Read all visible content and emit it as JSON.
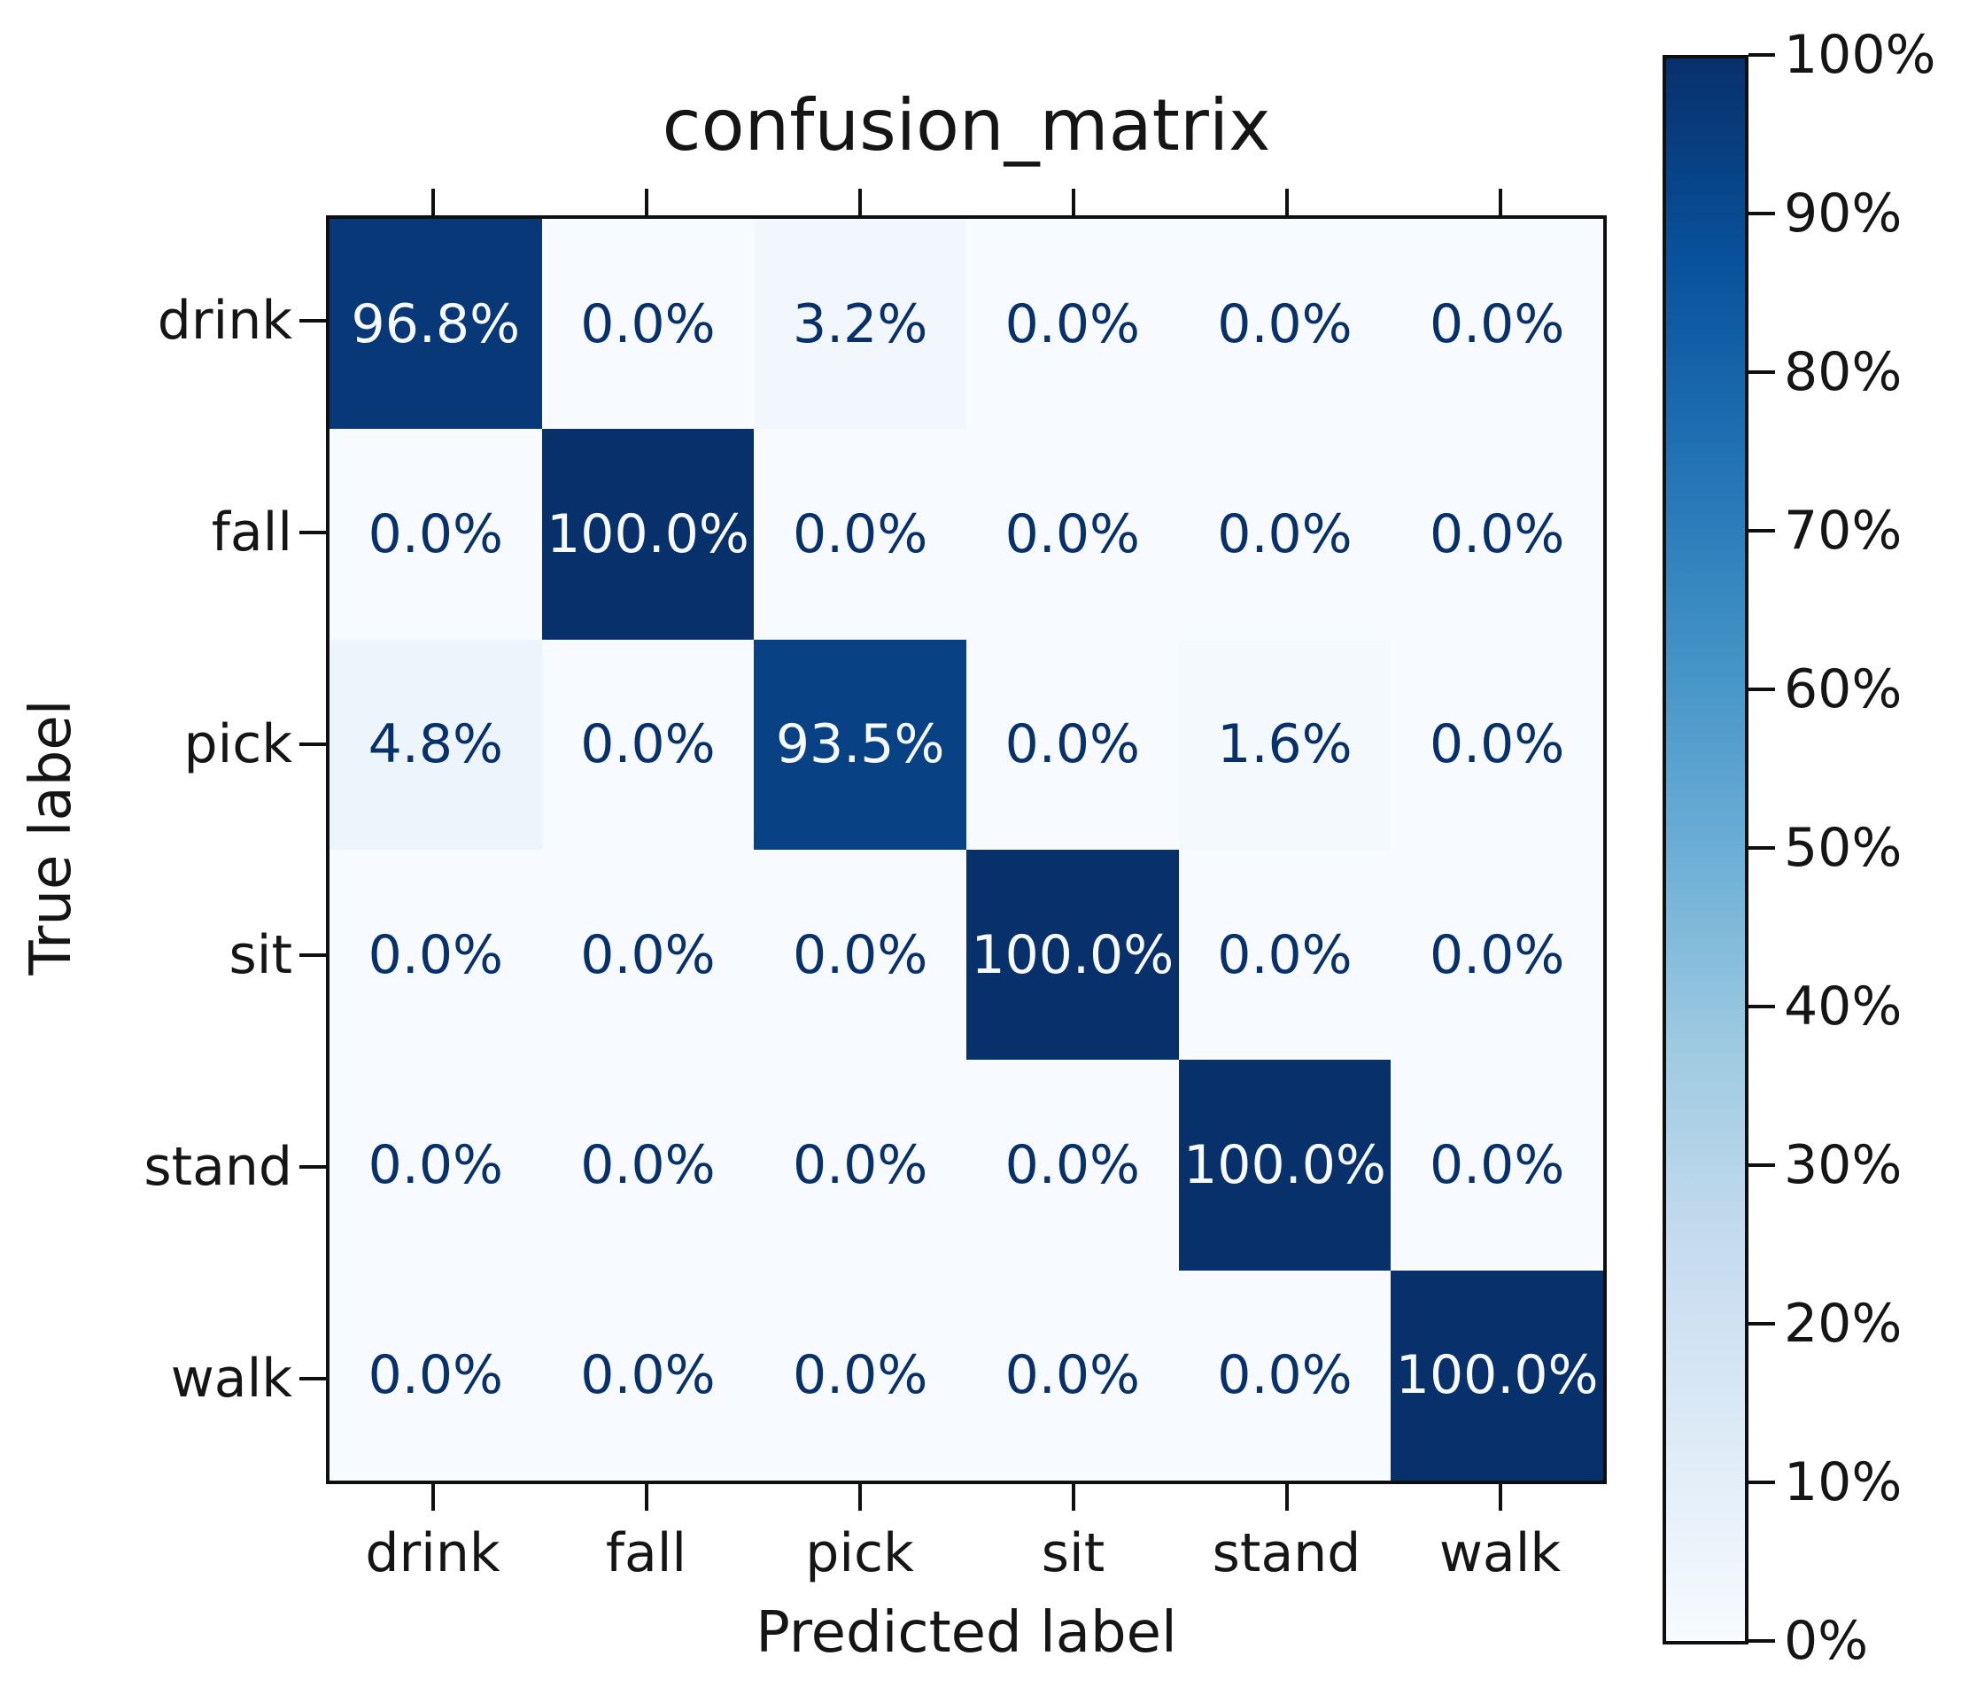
{
  "chart_data": {
    "type": "heatmap",
    "title": "confusion_matrix",
    "xlabel": "Predicted label",
    "ylabel": "True label",
    "x_categories": [
      "drink",
      "fall",
      "pick",
      "sit",
      "stand",
      "walk"
    ],
    "y_categories": [
      "drink",
      "fall",
      "pick",
      "sit",
      "stand",
      "walk"
    ],
    "values_percent": [
      [
        96.8,
        0.0,
        3.2,
        0.0,
        0.0,
        0.0
      ],
      [
        0.0,
        100.0,
        0.0,
        0.0,
        0.0,
        0.0
      ],
      [
        4.8,
        0.0,
        93.5,
        0.0,
        1.6,
        0.0
      ],
      [
        0.0,
        0.0,
        0.0,
        100.0,
        0.0,
        0.0
      ],
      [
        0.0,
        0.0,
        0.0,
        0.0,
        100.0,
        0.0
      ],
      [
        0.0,
        0.0,
        0.0,
        0.0,
        0.0,
        100.0
      ]
    ],
    "cell_labels": [
      [
        "96.8%",
        "0.0%",
        "3.2%",
        "0.0%",
        "0.0%",
        "0.0%"
      ],
      [
        "0.0%",
        "100.0%",
        "0.0%",
        "0.0%",
        "0.0%",
        "0.0%"
      ],
      [
        "4.8%",
        "0.0%",
        "93.5%",
        "0.0%",
        "1.6%",
        "0.0%"
      ],
      [
        "0.0%",
        "0.0%",
        "0.0%",
        "100.0%",
        "0.0%",
        "0.0%"
      ],
      [
        "0.0%",
        "0.0%",
        "0.0%",
        "0.0%",
        "100.0%",
        "0.0%"
      ],
      [
        "0.0%",
        "0.0%",
        "0.0%",
        "0.0%",
        "0.0%",
        "100.0%"
      ]
    ],
    "value_range": [
      0,
      100
    ],
    "grid": false,
    "colorbar": {
      "position": "right",
      "tick_labels_top_to_bottom": [
        "100%",
        "90%",
        "80%",
        "70%",
        "60%",
        "50%",
        "40%",
        "30%",
        "20%",
        "10%",
        "0%"
      ],
      "colormap": "Blues"
    }
  },
  "colors": {
    "colormap_stops_light_to_dark": [
      "#f7fbff",
      "#deebf7",
      "#c6dbef",
      "#9ecae1",
      "#6baed6",
      "#4292c6",
      "#2171b5",
      "#08519c",
      "#08306b"
    ],
    "cell_text_on_dark": "#f7fbff",
    "cell_text_on_light": "#08306b",
    "axis_line": "#0f0f0f",
    "text": "#151515",
    "background": "#ffffff"
  }
}
